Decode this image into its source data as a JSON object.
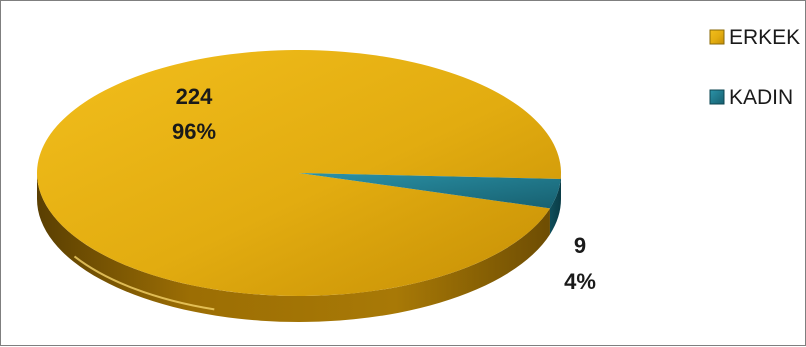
{
  "chart_data": {
    "type": "pie",
    "variant": "3d",
    "categories": [
      "ERKEK",
      "KADIN"
    ],
    "values": [
      224,
      9
    ],
    "percent_labels": [
      "96%",
      "4%"
    ],
    "colors": [
      "#D4A20A",
      "#1F7A8C"
    ],
    "legend_position": "right"
  }
}
